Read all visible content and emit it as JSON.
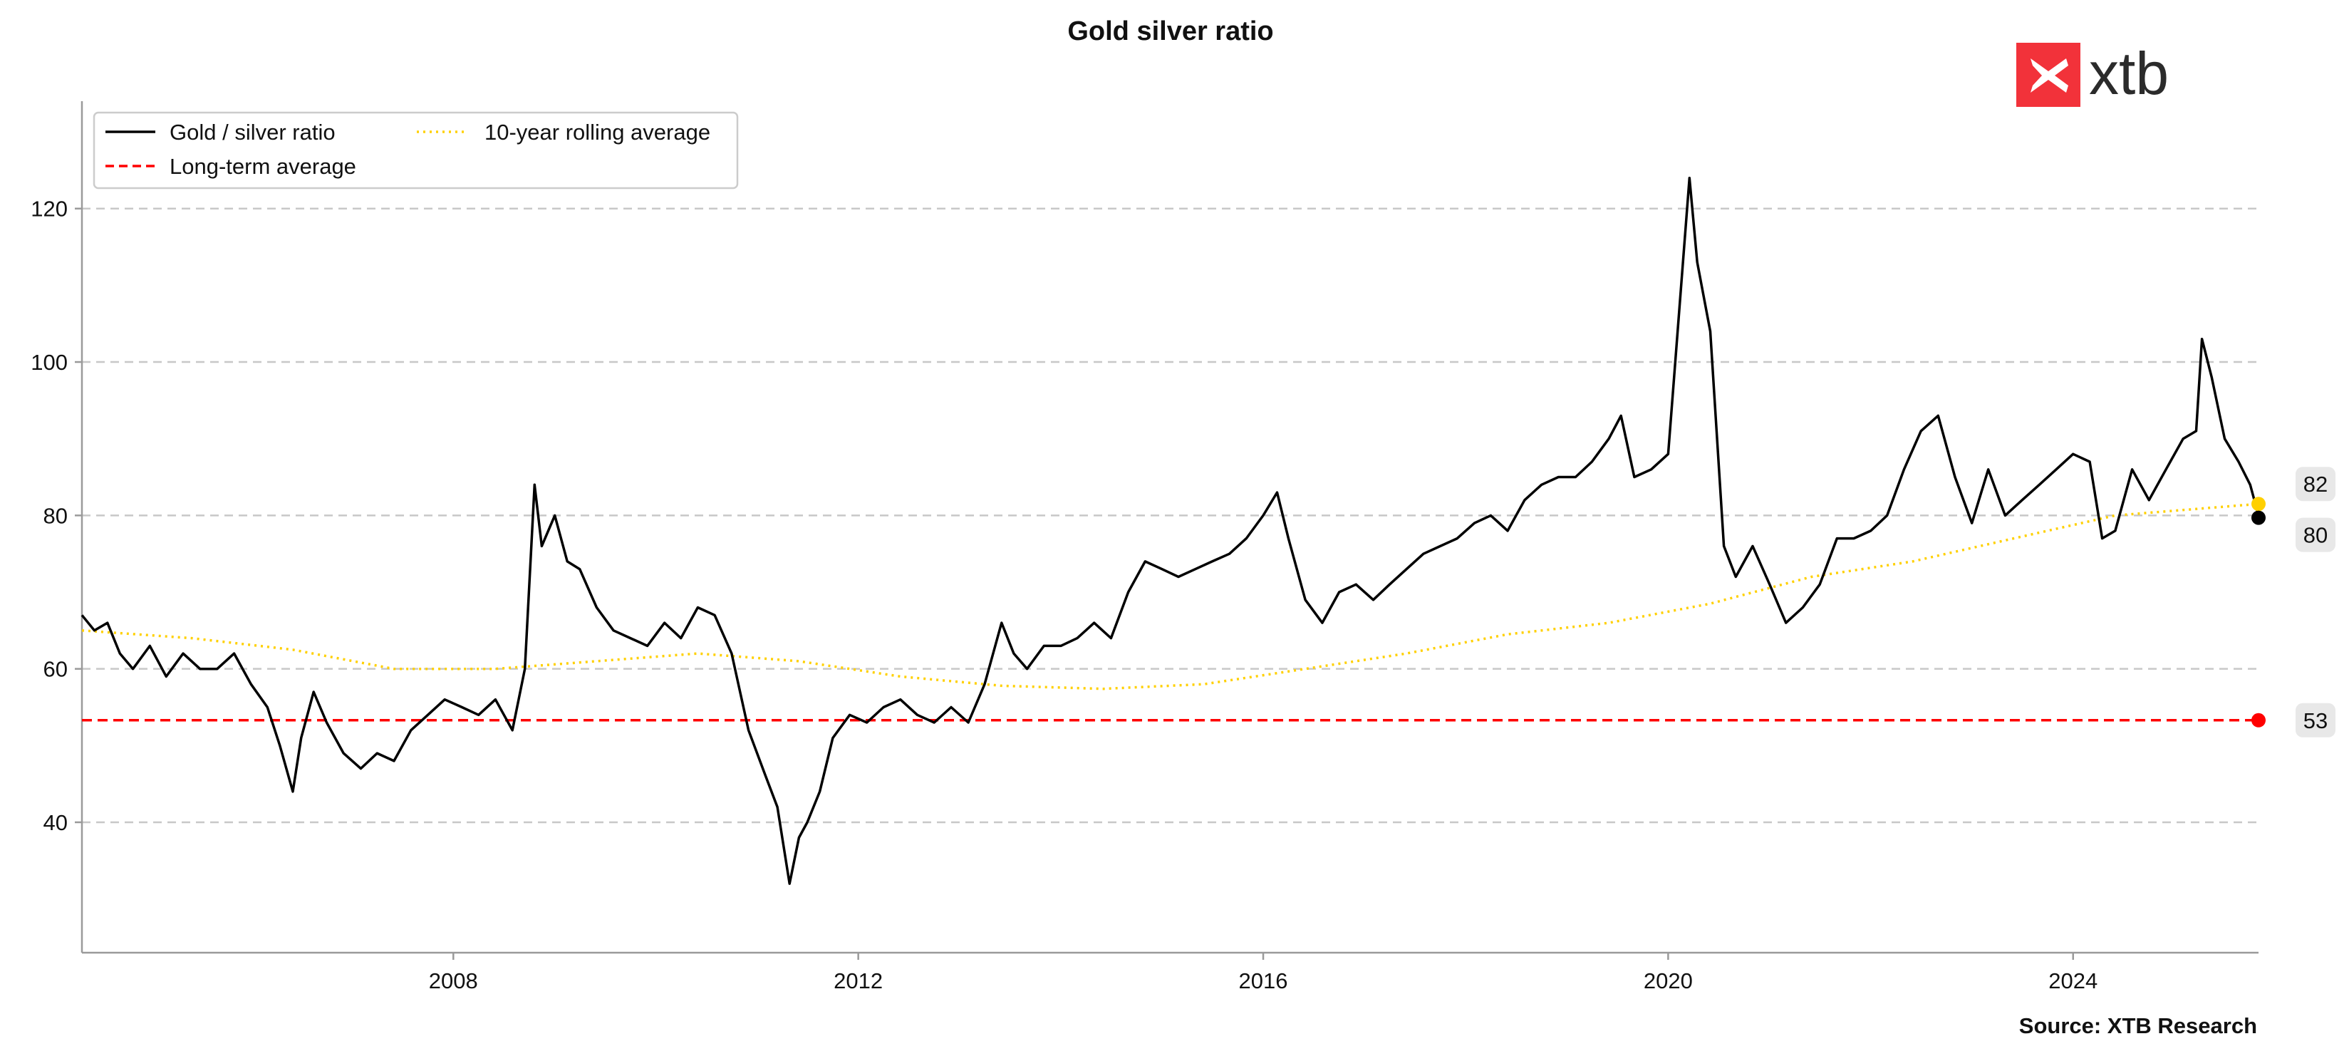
{
  "chart_data": {
    "type": "line",
    "title": "Gold silver ratio",
    "xlabel": "",
    "ylabel": "",
    "source": "Source: XTB Research",
    "brand": "xtb",
    "x_range": [
      "2004-05-01",
      "2025-10-31"
    ],
    "ylim": [
      23,
      134
    ],
    "x_ticks": [
      {
        "date": "2008-01-01",
        "label": "2008"
      },
      {
        "date": "2012-01-01",
        "label": "2012"
      },
      {
        "date": "2016-01-01",
        "label": "2016"
      },
      {
        "date": "2020-01-01",
        "label": "2020"
      },
      {
        "date": "2024-01-01",
        "label": "2024"
      }
    ],
    "y_ticks": [
      40,
      60,
      80,
      100,
      120
    ],
    "grid": "horizontal dashed",
    "legend_position": "top-left",
    "legend": [
      "Gold / silver ratio",
      "Long-term average",
      "10-year rolling average"
    ],
    "colors": {
      "ratio": "#000000",
      "long_term": "#ff0000",
      "rolling": "#ffd000",
      "grid": "#c8c8c8",
      "brand": "#f2323a"
    },
    "series": [
      {
        "name": "Gold / silver ratio",
        "style": "solid",
        "points": [
          [
            "2004-05-01",
            67
          ],
          [
            "2004-06-15",
            65
          ],
          [
            "2004-08-01",
            66
          ],
          [
            "2004-09-15",
            62
          ],
          [
            "2004-11-01",
            60
          ],
          [
            "2005-01-01",
            63
          ],
          [
            "2005-03-01",
            59
          ],
          [
            "2005-05-01",
            62
          ],
          [
            "2005-07-01",
            60
          ],
          [
            "2005-09-01",
            60
          ],
          [
            "2005-11-01",
            62
          ],
          [
            "2006-01-01",
            58
          ],
          [
            "2006-03-01",
            55
          ],
          [
            "2006-04-15",
            50
          ],
          [
            "2006-06-01",
            44
          ],
          [
            "2006-07-01",
            51
          ],
          [
            "2006-08-15",
            57
          ],
          [
            "2006-10-01",
            53
          ],
          [
            "2006-12-01",
            49
          ],
          [
            "2007-02-01",
            47
          ],
          [
            "2007-04-01",
            49
          ],
          [
            "2007-06-01",
            48
          ],
          [
            "2007-08-01",
            52
          ],
          [
            "2007-10-01",
            54
          ],
          [
            "2007-12-01",
            56
          ],
          [
            "2008-02-01",
            55
          ],
          [
            "2008-04-01",
            54
          ],
          [
            "2008-06-01",
            56
          ],
          [
            "2008-08-01",
            52
          ],
          [
            "2008-09-15",
            60
          ],
          [
            "2008-10-20",
            84
          ],
          [
            "2008-11-15",
            76
          ],
          [
            "2009-01-01",
            80
          ],
          [
            "2009-02-15",
            74
          ],
          [
            "2009-04-01",
            73
          ],
          [
            "2009-06-01",
            68
          ],
          [
            "2009-08-01",
            65
          ],
          [
            "2009-10-01",
            64
          ],
          [
            "2009-12-01",
            63
          ],
          [
            "2010-02-01",
            66
          ],
          [
            "2010-04-01",
            64
          ],
          [
            "2010-06-01",
            68
          ],
          [
            "2010-08-01",
            67
          ],
          [
            "2010-10-01",
            62
          ],
          [
            "2010-12-01",
            52
          ],
          [
            "2011-02-01",
            46
          ],
          [
            "2011-03-15",
            42
          ],
          [
            "2011-04-28",
            32
          ],
          [
            "2011-06-01",
            38
          ],
          [
            "2011-07-01",
            40
          ],
          [
            "2011-08-15",
            44
          ],
          [
            "2011-10-01",
            51
          ],
          [
            "2011-12-01",
            54
          ],
          [
            "2012-02-01",
            53
          ],
          [
            "2012-04-01",
            55
          ],
          [
            "2012-06-01",
            56
          ],
          [
            "2012-08-01",
            54
          ],
          [
            "2012-10-01",
            53
          ],
          [
            "2012-12-01",
            55
          ],
          [
            "2013-02-01",
            53
          ],
          [
            "2013-04-01",
            58
          ],
          [
            "2013-06-01",
            66
          ],
          [
            "2013-07-15",
            62
          ],
          [
            "2013-09-01",
            60
          ],
          [
            "2013-11-01",
            63
          ],
          [
            "2014-01-01",
            63
          ],
          [
            "2014-03-01",
            64
          ],
          [
            "2014-05-01",
            66
          ],
          [
            "2014-07-01",
            64
          ],
          [
            "2014-09-01",
            70
          ],
          [
            "2014-11-01",
            74
          ],
          [
            "2015-01-01",
            73
          ],
          [
            "2015-03-01",
            72
          ],
          [
            "2015-05-01",
            73
          ],
          [
            "2015-07-01",
            74
          ],
          [
            "2015-09-01",
            75
          ],
          [
            "2015-11-01",
            77
          ],
          [
            "2016-01-01",
            80
          ],
          [
            "2016-02-20",
            83
          ],
          [
            "2016-04-01",
            77
          ],
          [
            "2016-06-01",
            69
          ],
          [
            "2016-08-01",
            66
          ],
          [
            "2016-10-01",
            70
          ],
          [
            "2016-12-01",
            71
          ],
          [
            "2017-02-01",
            69
          ],
          [
            "2017-04-01",
            71
          ],
          [
            "2017-06-01",
            73
          ],
          [
            "2017-08-01",
            75
          ],
          [
            "2017-10-01",
            76
          ],
          [
            "2017-12-01",
            77
          ],
          [
            "2018-02-01",
            79
          ],
          [
            "2018-04-01",
            80
          ],
          [
            "2018-06-01",
            78
          ],
          [
            "2018-08-01",
            82
          ],
          [
            "2018-10-01",
            84
          ],
          [
            "2018-12-01",
            85
          ],
          [
            "2019-02-01",
            85
          ],
          [
            "2019-04-01",
            87
          ],
          [
            "2019-06-01",
            90
          ],
          [
            "2019-07-15",
            93
          ],
          [
            "2019-09-01",
            85
          ],
          [
            "2019-11-01",
            86
          ],
          [
            "2020-01-01",
            88
          ],
          [
            "2020-03-18",
            124
          ],
          [
            "2020-04-15",
            113
          ],
          [
            "2020-06-01",
            104
          ],
          [
            "2020-07-20",
            76
          ],
          [
            "2020-09-01",
            72
          ],
          [
            "2020-11-01",
            76
          ],
          [
            "2021-01-01",
            71
          ],
          [
            "2021-03-01",
            66
          ],
          [
            "2021-05-01",
            68
          ],
          [
            "2021-07-01",
            71
          ],
          [
            "2021-09-01",
            77
          ],
          [
            "2021-11-01",
            77
          ],
          [
            "2022-01-01",
            78
          ],
          [
            "2022-03-01",
            80
          ],
          [
            "2022-05-01",
            86
          ],
          [
            "2022-07-01",
            91
          ],
          [
            "2022-09-01",
            93
          ],
          [
            "2022-11-01",
            85
          ],
          [
            "2023-01-01",
            79
          ],
          [
            "2023-03-01",
            86
          ],
          [
            "2023-05-01",
            80
          ],
          [
            "2023-07-01",
            82
          ],
          [
            "2023-09-01",
            84
          ],
          [
            "2023-11-01",
            86
          ],
          [
            "2024-01-01",
            88
          ],
          [
            "2024-03-01",
            87
          ],
          [
            "2024-04-15",
            77
          ],
          [
            "2024-06-01",
            78
          ],
          [
            "2024-08-01",
            86
          ],
          [
            "2024-10-01",
            82
          ],
          [
            "2024-12-01",
            86
          ],
          [
            "2025-02-01",
            90
          ],
          [
            "2025-03-20",
            91
          ],
          [
            "2025-04-10",
            103
          ],
          [
            "2025-05-15",
            98
          ],
          [
            "2025-07-01",
            90
          ],
          [
            "2025-08-20",
            87
          ],
          [
            "2025-10-01",
            84
          ],
          [
            "2025-10-31",
            80
          ]
        ]
      },
      {
        "name": "Long-term average",
        "style": "dashed",
        "value": 53.3
      },
      {
        "name": "10-year rolling average",
        "style": "dotted",
        "points": [
          [
            "2004-05-01",
            65
          ],
          [
            "2005-06-01",
            64
          ],
          [
            "2006-06-01",
            62.5
          ],
          [
            "2007-06-01",
            60
          ],
          [
            "2008-06-01",
            60
          ],
          [
            "2009-06-01",
            61
          ],
          [
            "2010-06-01",
            62
          ],
          [
            "2011-06-01",
            61
          ],
          [
            "2012-06-01",
            59
          ],
          [
            "2013-06-01",
            57.8
          ],
          [
            "2014-06-01",
            57.4
          ],
          [
            "2015-06-01",
            58
          ],
          [
            "2016-06-01",
            60
          ],
          [
            "2017-06-01",
            62
          ],
          [
            "2018-06-01",
            64.5
          ],
          [
            "2019-06-01",
            66
          ],
          [
            "2020-06-01",
            68.5
          ],
          [
            "2021-06-01",
            72
          ],
          [
            "2022-06-01",
            74
          ],
          [
            "2023-06-01",
            77
          ],
          [
            "2024-06-01",
            80
          ],
          [
            "2025-10-31",
            81.5
          ]
        ]
      }
    ],
    "end_labels": [
      {
        "text": "82",
        "value": 81.5,
        "color": "#ffd000"
      },
      {
        "text": "80",
        "value": 79.7,
        "color": "#000000"
      },
      {
        "text": "53",
        "value": 53.3,
        "color": "#ff0000"
      }
    ]
  }
}
